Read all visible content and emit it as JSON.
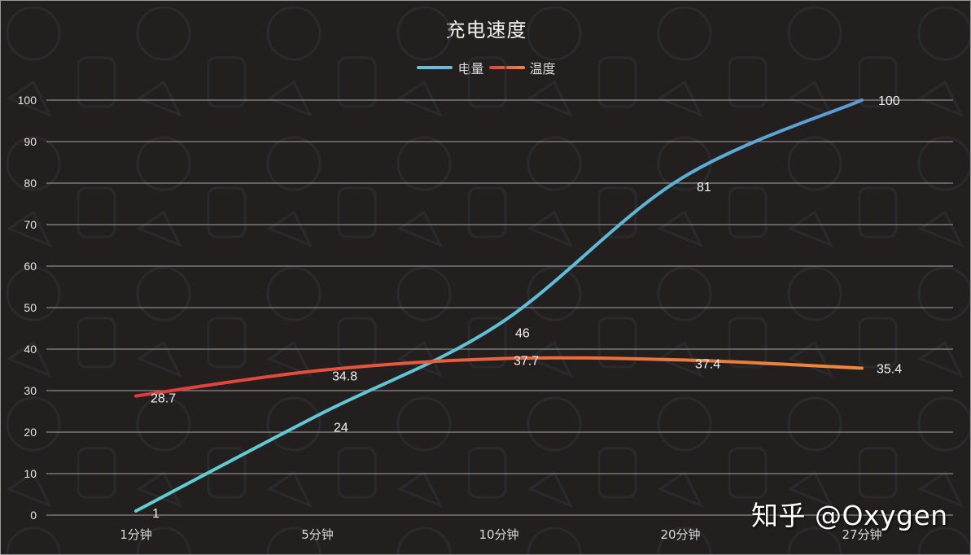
{
  "chart_data": {
    "type": "line",
    "title": "充电速度",
    "categories": [
      "1分钟",
      "5分钟",
      "10分钟",
      "20分钟",
      "27分钟"
    ],
    "series": [
      {
        "name": "电量",
        "values": [
          1,
          24,
          46,
          81,
          100
        ],
        "color": "#5bc8d6",
        "color_end": "#5a9fd6"
      },
      {
        "name": "温度",
        "values": [
          28.7,
          34.8,
          37.7,
          37.4,
          35.4
        ],
        "color": "#e0413c",
        "color_end": "#ea8a3a"
      }
    ],
    "xlabel": "",
    "ylabel": "",
    "ylim": [
      0,
      100
    ],
    "yticks": [
      0,
      10,
      20,
      30,
      40,
      50,
      60,
      70,
      80,
      90,
      100
    ],
    "grid": true,
    "smooth": true,
    "legend_position": "top",
    "data_labels": true
  },
  "watermark": "知乎 @Oxygen",
  "colors": {
    "background": "#231f1e",
    "gridline": "#8c8c8c",
    "text": "#f2f2f2"
  }
}
